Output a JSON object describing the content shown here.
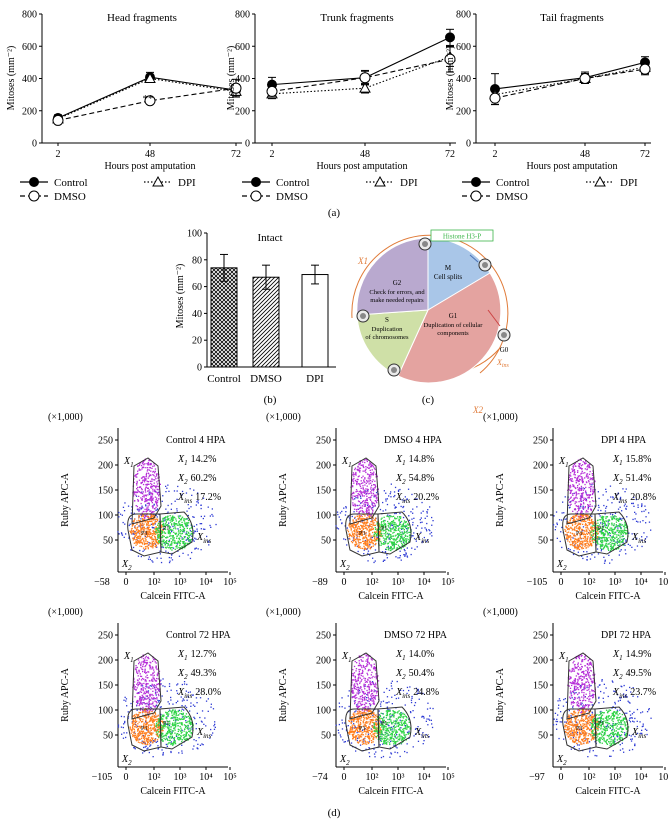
{
  "panel_a": {
    "label": "(a)",
    "y_label": "Mitoses (mm⁻²)",
    "x_label": "Hours post amputation",
    "legend": {
      "control": "Control",
      "dpi": "DPI",
      "dmso": "DMSO"
    },
    "charts": [
      {
        "title": "Head fragments",
        "annotation": "**"
      },
      {
        "title": "Trunk fragments"
      },
      {
        "title": "Tail fragments"
      }
    ]
  },
  "panel_b": {
    "label": "(b)",
    "title": "Intact",
    "y_label": "Mitoses (mm⁻²)"
  },
  "panel_c": {
    "label": "(c)",
    "histone": "Histone H3-P",
    "x1": "X1",
    "x2": "X2",
    "xins_x": "X",
    "xins_sub": "ins",
    "m_title": "M",
    "m_desc": "Cell splits",
    "g2_title": "G2",
    "g2_line1": "Check for errors, and",
    "g2_line2": "make needed repairs",
    "s_title": "S",
    "s_line1": "Duplication",
    "s_line2": "of chromosomes",
    "g1_title": "G1",
    "g1_line1": "Duplication of cellular",
    "g1_line2": "components",
    "g0": "G0"
  },
  "panel_d": {
    "label": "(d)",
    "multiplier": "(×1,000)",
    "y_label": "Ruby APC-A",
    "x_label": "Calcein FITC-A",
    "y_ticks": [
      "250",
      "200",
      "150",
      "100",
      "50"
    ],
    "gate_labels": {
      "x1": "X",
      "x1_sub": "1",
      "x2": "X",
      "x2_sub": "2",
      "xins": "X",
      "xins_sub": "ins",
      "p3": "P3",
      "p1": "P1"
    },
    "plots": [
      {
        "title": "Control 4 HPA",
        "x1": "14.2%",
        "x2": "60.2%",
        "xins": "17.2%",
        "xmin": "−58"
      },
      {
        "title": "DMSO 4 HPA",
        "x1": "14.8%",
        "x2": "54.8%",
        "xins": "20.2%",
        "xmin": "−89"
      },
      {
        "title": "DPI 4 HPA",
        "x1": "15.8%",
        "x2": "51.4%",
        "xins": "20.8%",
        "xmin": "−105"
      },
      {
        "title": "Control 72 HPA",
        "x1": "12.7%",
        "x2": "49.3%",
        "xins": "28.0%",
        "xmin": "−105"
      },
      {
        "title": "DMSO 72 HPA",
        "x1": "14.0%",
        "x2": "50.4%",
        "xins": "24.8%",
        "xmin": "−74"
      },
      {
        "title": "DPI 72 HPA",
        "x1": "14.9%",
        "x2": "49.5%",
        "xins": "23.7%",
        "xmin": "−97"
      }
    ],
    "x_ticks": [
      "0",
      "10²",
      "10³",
      "10⁴",
      "10⁵"
    ]
  },
  "chart_data": [
    {
      "type": "line",
      "title": "Head fragments",
      "xlabel": "Hours post amputation",
      "ylabel": "Mitoses (mm⁻²)",
      "x": [
        "2",
        "48",
        "72"
      ],
      "ylim": [
        0,
        800
      ],
      "yticks": [
        "0",
        "200",
        "400",
        "600",
        "800"
      ],
      "series": [
        {
          "name": "Control",
          "values": [
            155,
            408,
            328
          ],
          "err": [
            20,
            30,
            35
          ]
        },
        {
          "name": "DPI",
          "values": [
            150,
            400,
            320
          ],
          "err": [
            0,
            0,
            0
          ]
        },
        {
          "name": "DMSO",
          "values": [
            140,
            262,
            340
          ],
          "err": [
            18,
            0,
            55
          ]
        }
      ]
    },
    {
      "type": "line",
      "title": "Trunk fragments",
      "xlabel": "Hours post amputation",
      "ylabel": "Mitoses (mm⁻²)",
      "x": [
        "2",
        "48",
        "72"
      ],
      "ylim": [
        0,
        800
      ],
      "yticks": [
        "0",
        "200",
        "400",
        "600",
        "800"
      ],
      "series": [
        {
          "name": "Control",
          "values": [
            362,
            405,
            655
          ],
          "err": [
            45,
            45,
            50
          ]
        },
        {
          "name": "DPI",
          "values": [
            305,
            340,
            535
          ],
          "err": [
            30,
            30,
            60
          ]
        },
        {
          "name": "DMSO",
          "values": [
            320,
            405,
            520
          ],
          "err": [
            30,
            40,
            80
          ]
        }
      ]
    },
    {
      "type": "line",
      "title": "Tail fragments",
      "xlabel": "Hours post amputation",
      "ylabel": "Mitoses (mm⁻²)",
      "x": [
        "2",
        "48",
        "72"
      ],
      "ylim": [
        0,
        800
      ],
      "yticks": [
        "0",
        "200",
        "400",
        "600",
        "800"
      ],
      "series": [
        {
          "name": "Control",
          "values": [
            335,
            405,
            500
          ],
          "err": [
            95,
            35,
            35
          ]
        },
        {
          "name": "DPI",
          "values": [
            300,
            400,
            470
          ],
          "err": [
            40,
            30,
            40
          ]
        },
        {
          "name": "DMSO",
          "values": [
            278,
            400,
            458
          ],
          "err": [
            40,
            30,
            35
          ]
        }
      ]
    },
    {
      "type": "bar",
      "title": "Intact",
      "ylabel": "Mitoses (mm⁻²)",
      "categories": [
        "Control",
        "DMSO",
        "DPI"
      ],
      "values": [
        74,
        67,
        69
      ],
      "err": [
        10,
        9,
        7
      ],
      "ylim": [
        0,
        100
      ],
      "yticks": [
        "0",
        "20",
        "40",
        "60",
        "80",
        "100"
      ]
    }
  ]
}
